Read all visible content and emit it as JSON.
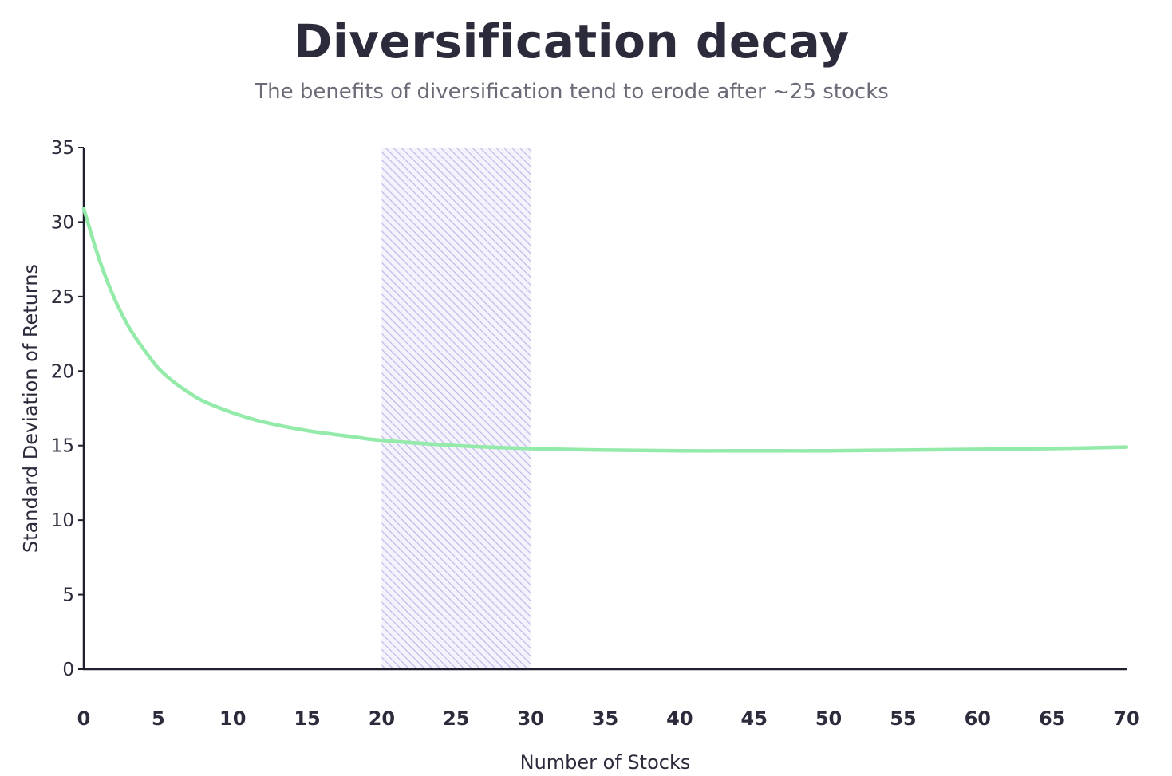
{
  "chart_data": {
    "type": "line",
    "title": "Diversification decay",
    "subtitle": "The benefits of diversification tend to erode after ~25 stocks",
    "xlabel": "Number of Stocks",
    "ylabel": "Standard Deviation of Returns",
    "xlim": [
      0,
      70
    ],
    "ylim": [
      0,
      35
    ],
    "xticks": [
      0,
      5,
      10,
      15,
      20,
      25,
      30,
      35,
      40,
      45,
      50,
      55,
      60,
      65,
      70
    ],
    "yticks": [
      0,
      5,
      10,
      15,
      20,
      25,
      30,
      35
    ],
    "grid": false,
    "highlight_range": {
      "x_start": 20,
      "x_end": 30,
      "fill": "hatched",
      "color": "#b9b6e6"
    },
    "series": [
      {
        "color": "#94eaa8",
        "x": [
          0,
          1,
          2,
          3,
          4,
          5,
          6,
          7,
          8,
          10,
          12,
          15,
          18,
          20,
          25,
          30,
          35,
          40,
          45,
          50,
          55,
          60,
          65,
          70
        ],
        "y": [
          30.9,
          27.6,
          25.0,
          23.0,
          21.5,
          20.2,
          19.3,
          18.6,
          18.0,
          17.2,
          16.6,
          16.0,
          15.6,
          15.35,
          15.0,
          14.8,
          14.7,
          14.65,
          14.65,
          14.65,
          14.7,
          14.75,
          14.8,
          14.9
        ]
      }
    ]
  }
}
